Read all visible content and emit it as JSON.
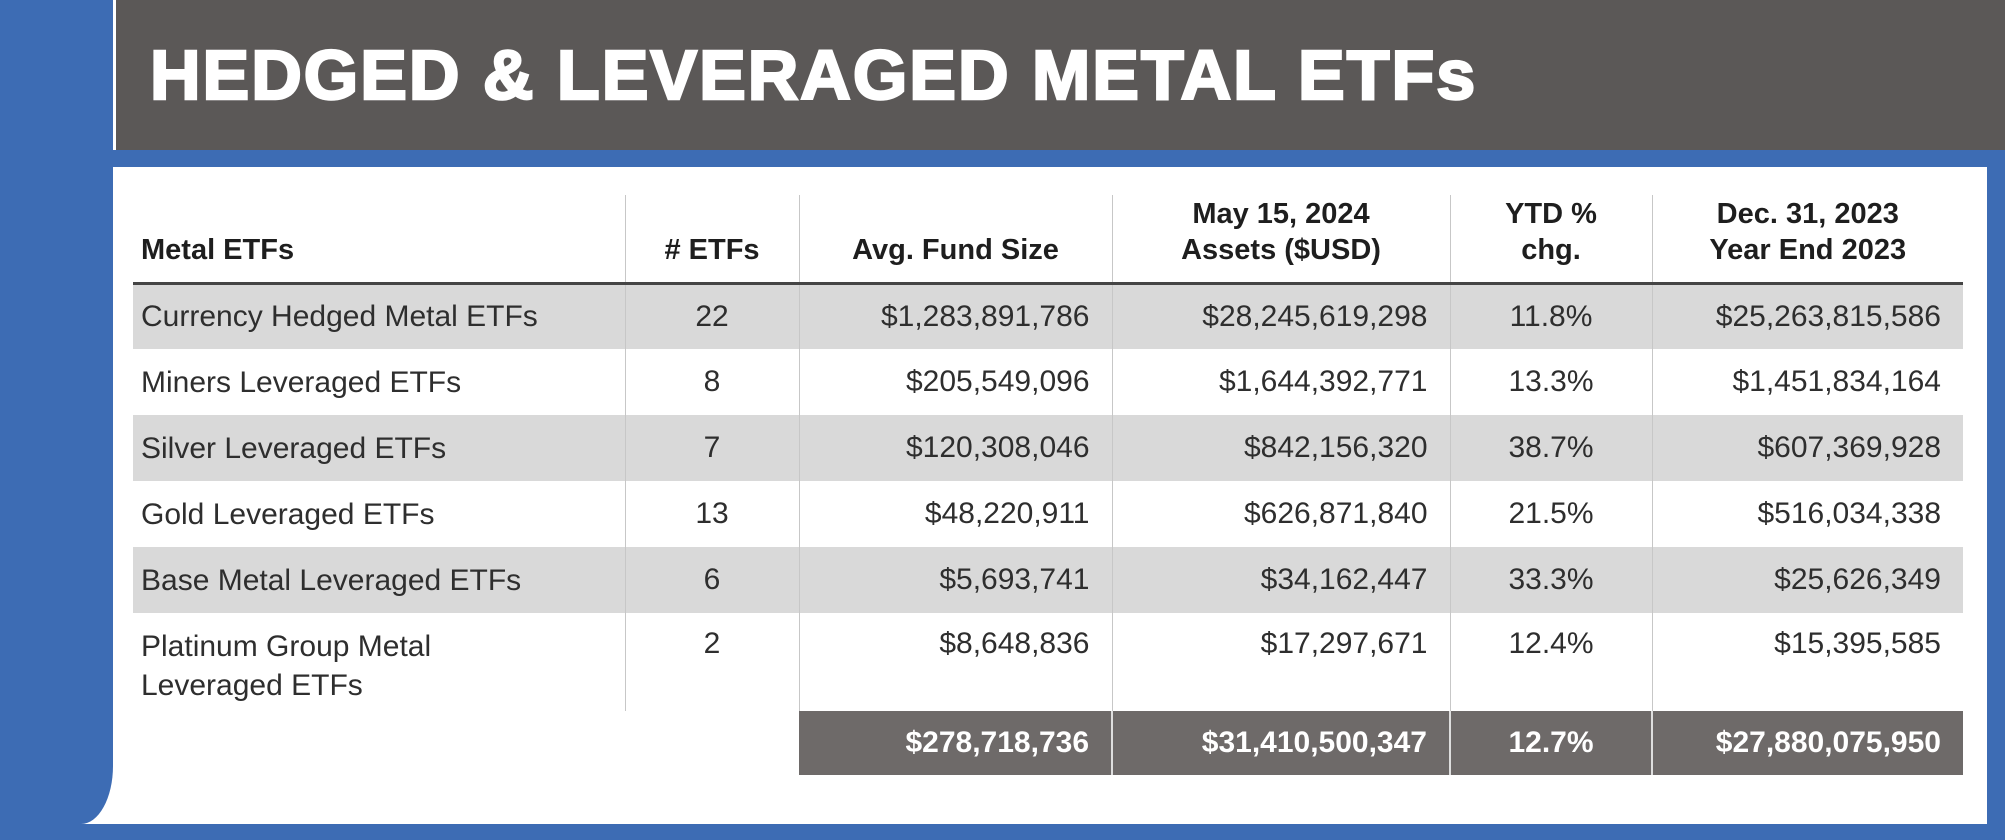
{
  "page": {
    "title": "HEDGED & LEVERAGED METAL ETFs"
  },
  "colors": {
    "accent_blue": "#3d6cb4",
    "title_band_gray": "#5b5857",
    "totals_band_gray": "#6e6a69",
    "row_shade_gray": "#d9d9d9",
    "divider_gray": "#c7c7c7"
  },
  "header": {
    "columns": [
      {
        "label": "Metal ETFs",
        "label2": ""
      },
      {
        "label": "# ETFs",
        "label2": ""
      },
      {
        "label": "Avg. Fund Size",
        "label2": ""
      },
      {
        "label": "May 15, 2024",
        "label2": "Assets ($USD)"
      },
      {
        "label": "YTD % chg.",
        "label2": ""
      },
      {
        "label": "Dec. 31, 2023",
        "label2": "Year End 2023"
      }
    ]
  },
  "chart_data": {
    "type": "table",
    "title": "HEDGED & LEVERAGED METAL ETFs",
    "columns": [
      "Metal ETFs",
      "# ETFs",
      "Avg. Fund Size",
      "May 15, 2024 Assets ($USD)",
      "YTD % chg.",
      "Dec. 31, 2023 Year End 2023"
    ],
    "rows": [
      {
        "name": "Currency Hedged Metal ETFs",
        "etfs": "22",
        "avg": "$1,283,891,786",
        "assets": "$28,245,619,298",
        "ytd": "11.8%",
        "yearend": "$25,263,815,586"
      },
      {
        "name": "Miners Leveraged ETFs",
        "etfs": "8",
        "avg": "$205,549,096",
        "assets": "$1,644,392,771",
        "ytd": "13.3%",
        "yearend": "$1,451,834,164"
      },
      {
        "name": "Silver Leveraged ETFs",
        "etfs": "7",
        "avg": "$120,308,046",
        "assets": "$842,156,320",
        "ytd": "38.7%",
        "yearend": "$607,369,928"
      },
      {
        "name": "Gold Leveraged ETFs",
        "etfs": "13",
        "avg": "$48,220,911",
        "assets": "$626,871,840",
        "ytd": "21.5%",
        "yearend": "$516,034,338"
      },
      {
        "name": "Base Metal Leveraged ETFs",
        "etfs": "6",
        "avg": "$5,693,741",
        "assets": "$34,162,447",
        "ytd": "33.3%",
        "yearend": "$25,626,349"
      },
      {
        "name": "Platinum Group Metal Leveraged ETFs",
        "etfs": "2",
        "avg": "$8,648,836",
        "assets": "$17,297,671",
        "ytd": "12.4%",
        "yearend": "$15,395,585"
      }
    ],
    "totals": {
      "avg": "$278,718,736",
      "assets": "$31,410,500,347",
      "ytd": "12.7%",
      "yearend": "$27,880,075,950"
    }
  }
}
